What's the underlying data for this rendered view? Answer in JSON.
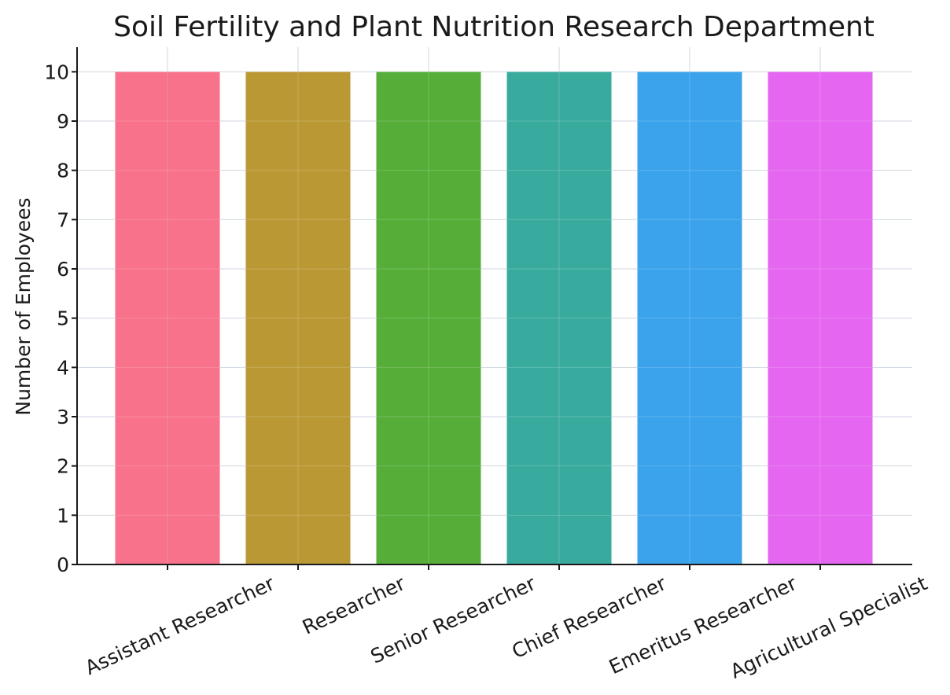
{
  "chart_data": {
    "type": "bar",
    "title": "Soil Fertility and Plant Nutrition Research Department",
    "xlabel": "",
    "ylabel": "Number of Employees",
    "categories": [
      "Assistant Researcher",
      "Researcher",
      "Senior Researcher",
      "Chief Researcher",
      "Emeritus Researcher",
      "Agricultural Specialist"
    ],
    "values": [
      10,
      10,
      10,
      10,
      10,
      10
    ],
    "colors": [
      "#f7728a",
      "#ba9935",
      "#56ae38",
      "#39ab9e",
      "#3ba3ec",
      "#e566f0"
    ],
    "ylim": [
      0,
      10.5
    ],
    "yticks": [
      0,
      1,
      2,
      3,
      4,
      5,
      6,
      7,
      8,
      9,
      10
    ],
    "grid": true,
    "legend": "none"
  }
}
